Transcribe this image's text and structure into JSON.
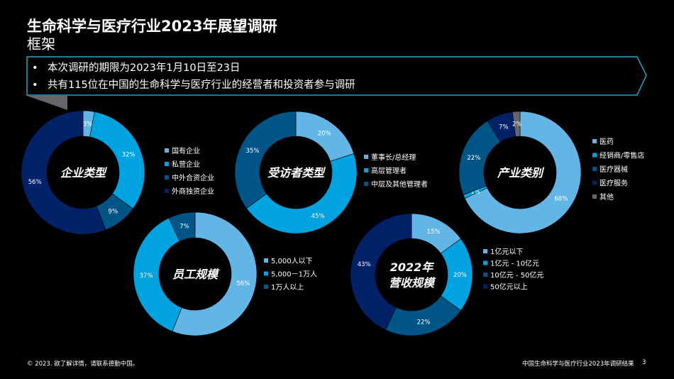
{
  "header": {
    "title": "生命科学与医疗行业2023年展望调研",
    "subtitle": "框架"
  },
  "callout": {
    "bullets": [
      "本次调研的期限为2023年1月10日至23日",
      "共有115位在中国的生命科学与医疗行业的经营者和投资者参与调研"
    ],
    "border_color": "#19a7c8"
  },
  "chart_data": [
    {
      "type": "pie",
      "center_label": [
        "企业类型"
      ],
      "categories": [
        "国有企业",
        "私营企业",
        "中外合资企业",
        "外商独资企业"
      ],
      "values": [
        3,
        32,
        9,
        56
      ],
      "labels": [
        "3%",
        "32%",
        "9%",
        "56%"
      ],
      "colors": [
        "#62b5e5",
        "#00a3e0",
        "#005587",
        "#012169"
      ]
    },
    {
      "type": "pie",
      "center_label": [
        "受访者类型"
      ],
      "categories": [
        "董事长/总经理",
        "高层管理者",
        "中层及其他管理者"
      ],
      "values": [
        20,
        45,
        35
      ],
      "labels": [
        "20%",
        "45%",
        "35%"
      ],
      "colors": [
        "#62b5e5",
        "#00a3e0",
        "#005587"
      ]
    },
    {
      "type": "pie",
      "center_label": [
        "产业类别"
      ],
      "categories": [
        "医药",
        "经销商/零售店",
        "医疗器械",
        "医疗服务",
        "其他"
      ],
      "values": [
        68,
        1,
        22,
        7,
        2
      ],
      "labels": [
        "68%",
        "1%",
        "22%",
        "7%",
        "2%"
      ],
      "colors": [
        "#62b5e5",
        "#00a3e0",
        "#005587",
        "#012169",
        "#63666a"
      ]
    },
    {
      "type": "pie",
      "center_label": [
        "员工规模"
      ],
      "categories": [
        "5,000人以下",
        "5,000－1万人",
        "1万人以上"
      ],
      "values": [
        56,
        37,
        7
      ],
      "labels": [
        "56%",
        "37%",
        "7%"
      ],
      "colors": [
        "#62b5e5",
        "#00a3e0",
        "#005587"
      ]
    },
    {
      "type": "pie",
      "center_label": [
        "2022年",
        "营收规模"
      ],
      "categories": [
        "1亿元以下",
        "1亿元 - 10亿元",
        "10亿元 - 50亿元",
        "50亿元以上"
      ],
      "values": [
        15,
        20,
        22,
        43
      ],
      "labels": [
        "15%",
        "20%",
        "22%",
        "43%"
      ],
      "colors": [
        "#62b5e5",
        "#00a3e0",
        "#005587",
        "#012169"
      ]
    }
  ],
  "footer": {
    "copyright": "© 2023. 欲了解详情，请联系德勤中国。",
    "report_name": "中国生命科学与医疗行业2023年调研结果",
    "page_number": "3"
  }
}
